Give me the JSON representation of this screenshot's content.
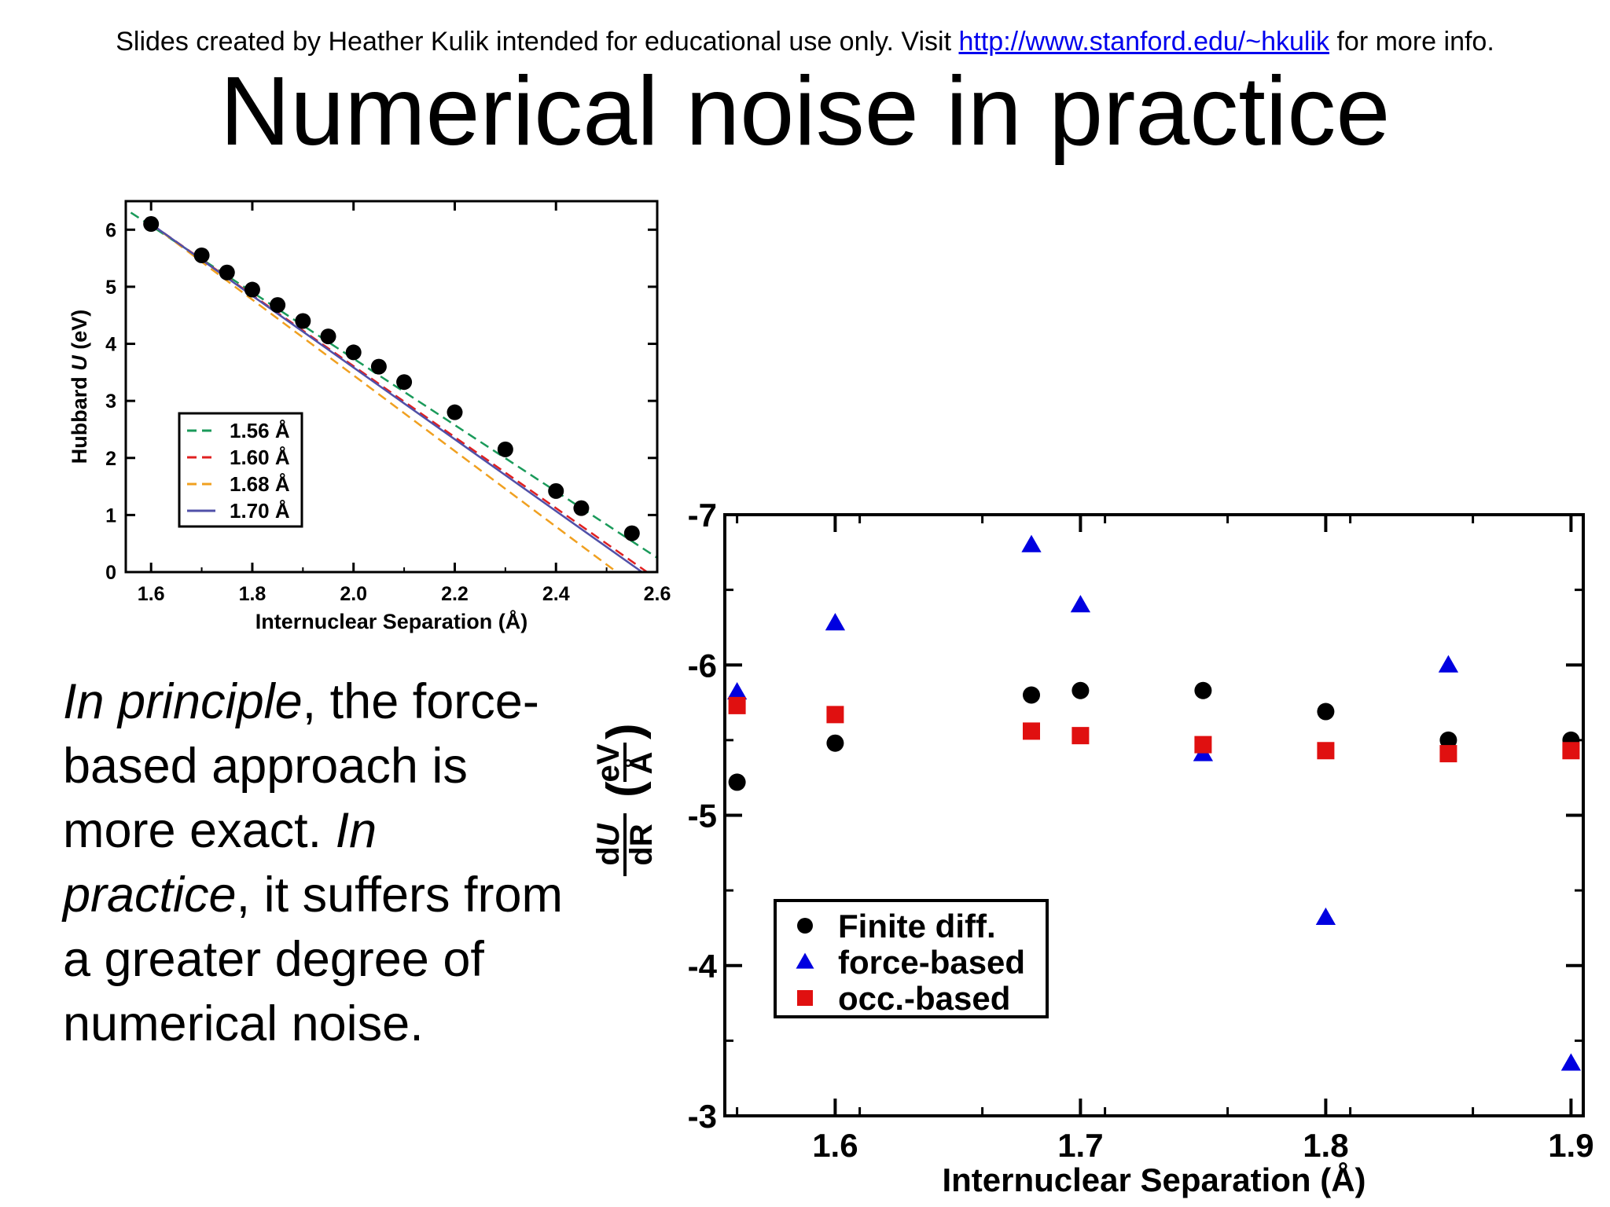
{
  "header": {
    "credit_prefix": "Slides created by Heather Kulik intended for educational use only. Visit ",
    "credit_link": "http://www.stanford.edu/~hkulik",
    "credit_suffix": " for more info."
  },
  "slide": {
    "title": "Numerical noise in practice",
    "body": {
      "p1_em": "In principle",
      "p1_rest": ", the force-based approach is more exact",
      "p2_sep": ". ",
      "p2_em": "In practice",
      "p2_rest": ", it suffers from a greater degree of numerical noise."
    }
  },
  "chart_data": [
    {
      "type": "line",
      "xlabel": "Internuclear Separation (Å)",
      "ylabel": "Hubbard U (eV)",
      "ylabel_parts": {
        "pre": "Hubbard ",
        "var": "U",
        "post": " (eV)"
      },
      "xlim": [
        1.55,
        2.6
      ],
      "ylim": [
        0,
        6.5
      ],
      "xticks": [
        1.6,
        1.8,
        2.0,
        2.2,
        2.4,
        2.6
      ],
      "xtick_labels": [
        "1.6",
        "1.8",
        "2.0",
        "2.2",
        "2.4",
        "2.6"
      ],
      "yticks": [
        0,
        1,
        2,
        3,
        4,
        5,
        6
      ],
      "ytick_labels": [
        "0",
        "1",
        "2",
        "3",
        "4",
        "5",
        "6"
      ],
      "legend_position": "lower-left",
      "points": {
        "x": [
          1.6,
          1.7,
          1.75,
          1.8,
          1.85,
          1.9,
          1.95,
          2.0,
          2.05,
          2.1,
          2.2,
          2.3,
          2.4,
          2.45,
          2.55
        ],
        "y": [
          6.1,
          5.55,
          5.25,
          4.95,
          4.68,
          4.4,
          4.13,
          3.85,
          3.6,
          3.33,
          2.8,
          2.15,
          1.42,
          1.12,
          0.68
        ],
        "color": "#000000"
      },
      "series": [
        {
          "name": "1.56 Å",
          "style": "dashed",
          "color": "#1a9a5a",
          "x": [
            1.56,
            2.6
          ],
          "y": [
            6.3,
            0.25
          ]
        },
        {
          "name": "1.60 Å",
          "style": "dashed",
          "color": "#e02020",
          "x": [
            1.6,
            2.58
          ],
          "y": [
            6.1,
            0
          ]
        },
        {
          "name": "1.68 Å",
          "style": "dashed",
          "color": "#f0a020",
          "x": [
            1.6,
            2.52
          ],
          "y": [
            6.1,
            0
          ]
        },
        {
          "name": "1.70 Å",
          "style": "solid",
          "color": "#5050a8",
          "x": [
            1.6,
            2.57
          ],
          "y": [
            6.1,
            0
          ]
        }
      ]
    },
    {
      "type": "scatter",
      "xlabel": "Internuclear Separation (Å)",
      "ylabel_parts": {
        "num_pre": "d",
        "num_var": "U",
        "den": "dR",
        "paren_num": "eV",
        "paren_den": "Å"
      },
      "xlim": [
        1.555,
        1.905
      ],
      "ylim": [
        -7,
        -3
      ],
      "xticks": [
        1.6,
        1.7,
        1.8,
        1.9
      ],
      "xtick_labels": [
        "1.6",
        "1.7",
        "1.8",
        "1.9"
      ],
      "yticks": [
        -7,
        -6,
        -5,
        -4,
        -3
      ],
      "ytick_labels": [
        "-7",
        "-6",
        "-5",
        "-4",
        "-3"
      ],
      "legend_position": "lower-left",
      "series": [
        {
          "name": "Finite diff.",
          "marker": "circle",
          "color": "#000000",
          "x": [
            1.56,
            1.6,
            1.68,
            1.7,
            1.75,
            1.8,
            1.85,
            1.9
          ],
          "y": [
            -5.22,
            -5.48,
            -5.8,
            -5.83,
            -5.83,
            -5.69,
            -5.5,
            -5.5
          ]
        },
        {
          "name": "force-based",
          "marker": "triangle",
          "color": "#0000e0",
          "x": [
            1.56,
            1.6,
            1.68,
            1.7,
            1.75,
            1.8,
            1.85,
            1.9
          ],
          "y": [
            -5.82,
            -6.28,
            -6.8,
            -6.4,
            -5.41,
            -4.32,
            -6.0,
            -3.35
          ]
        },
        {
          "name": "occ.-based",
          "marker": "square",
          "color": "#e01010",
          "x": [
            1.56,
            1.6,
            1.68,
            1.7,
            1.75,
            1.8,
            1.85,
            1.9
          ],
          "y": [
            -5.73,
            -5.67,
            -5.56,
            -5.53,
            -5.47,
            -5.43,
            -5.41,
            -5.43
          ]
        }
      ]
    }
  ]
}
